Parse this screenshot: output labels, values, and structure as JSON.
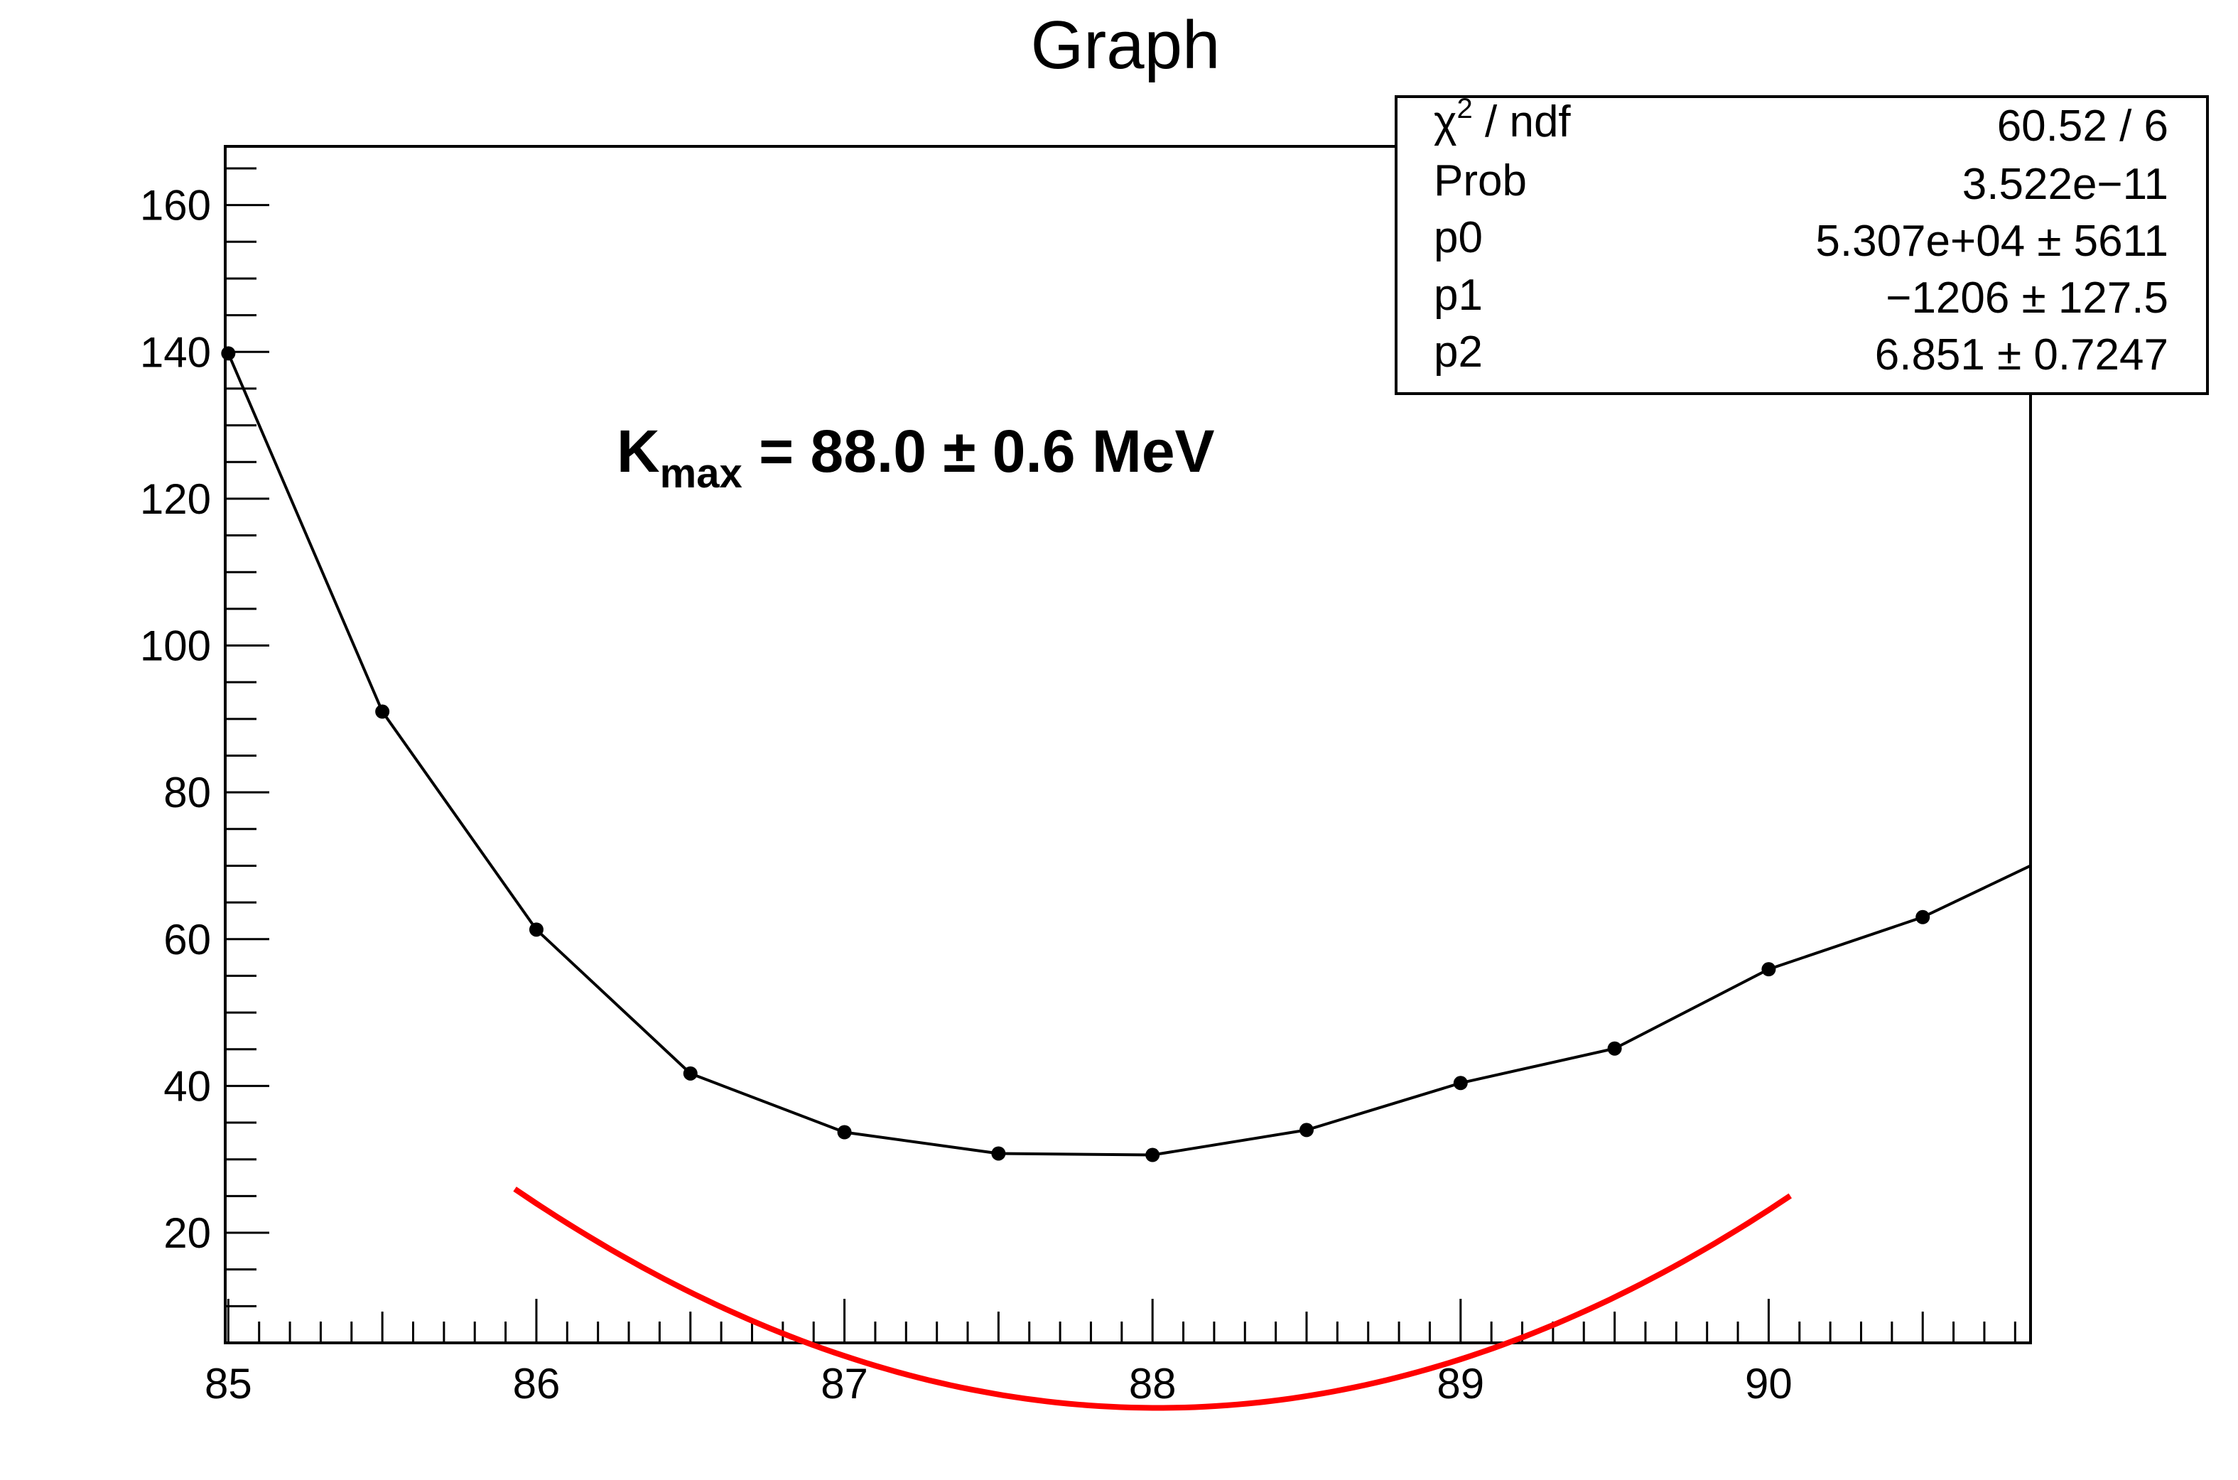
{
  "chart_data": {
    "type": "line",
    "title": "Graph",
    "xlabel": "",
    "ylabel": "",
    "xlim": [
      84.99,
      90.85
    ],
    "ylim": [
      5,
      168
    ],
    "x_ticks": [
      "85",
      "86",
      "87",
      "88",
      "89",
      "90"
    ],
    "y_ticks": [
      "20",
      "40",
      "60",
      "80",
      "100",
      "120",
      "140",
      "160"
    ],
    "series": [
      {
        "color": "#000000",
        "marker": "circle",
        "points": [
          {
            "x": 85.0,
            "y": 139.8
          },
          {
            "x": 85.5,
            "y": 91.0
          },
          {
            "x": 86.0,
            "y": 61.3
          },
          {
            "x": 86.5,
            "y": 41.7
          },
          {
            "x": 87.0,
            "y": 33.7
          },
          {
            "x": 87.5,
            "y": 30.8
          },
          {
            "x": 88.0,
            "y": 30.6
          },
          {
            "x": 88.5,
            "y": 34.0
          },
          {
            "x": 89.0,
            "y": 40.4
          },
          {
            "x": 89.5,
            "y": 45.1
          },
          {
            "x": 90.0,
            "y": 55.9
          },
          {
            "x": 90.5,
            "y": 63.0
          }
        ],
        "line_end": {
          "x": 90.85,
          "y": 70.0
        }
      }
    ],
    "fit": {
      "color": "#ff0000",
      "function": "p0 + p1*x + p2*x^2",
      "p0": 53070,
      "p1": -1206,
      "p2": 6.851,
      "x_range": [
        85.93,
        90.07
      ],
      "minimum": 88.0
    },
    "annotation": {
      "main": "K",
      "subscript": "max",
      "rest": " = 88.0  ± 0.6 MeV"
    },
    "stats_box": [
      {
        "label": "χ",
        "label_sup": "2",
        "label_rest": " / ndf",
        "value": "60.52 / 6"
      },
      {
        "label": "Prob",
        "value": "3.522e−11"
      },
      {
        "label": "p0",
        "value": "5.307e+04 ±  5611"
      },
      {
        "label": "p1",
        "value": "−1206 ± 127.5"
      },
      {
        "label": "p2",
        "value": "6.851 ± 0.7247"
      }
    ],
    "legend_position": "top-right",
    "grid": false
  }
}
